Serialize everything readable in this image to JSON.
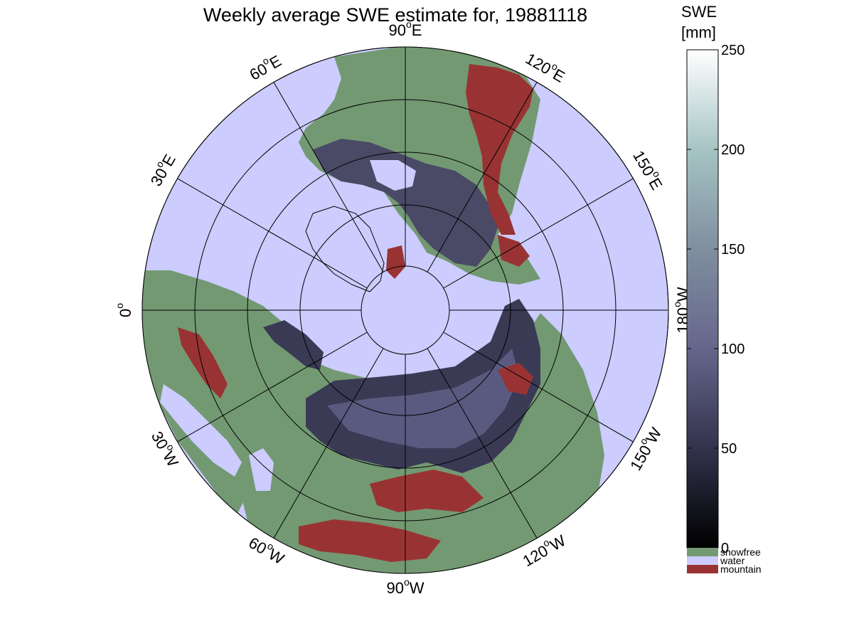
{
  "title": "Weekly average SWE estimate for, 19881118",
  "map": {
    "projection": "north polar stereographic",
    "ring_count": 5,
    "longitude_labels": [
      {
        "deg": "90",
        "dir": "W",
        "lon": -90
      },
      {
        "deg": "60",
        "dir": "W",
        "lon": -60
      },
      {
        "deg": "120",
        "dir": "W",
        "lon": -120
      },
      {
        "deg": "30",
        "dir": "W",
        "lon": -30
      },
      {
        "deg": "150",
        "dir": "W",
        "lon": -150
      },
      {
        "deg": "0",
        "dir": "",
        "lon": 0
      },
      {
        "deg": "180",
        "dir": "W",
        "lon": 180
      },
      {
        "deg": "30",
        "dir": "E",
        "lon": 30
      },
      {
        "deg": "150",
        "dir": "E",
        "lon": 150
      },
      {
        "deg": "60",
        "dir": "E",
        "lon": 60
      },
      {
        "deg": "120",
        "dir": "E",
        "lon": 120
      },
      {
        "deg": "90",
        "dir": "E",
        "lon": 90
      }
    ],
    "colors": {
      "water": "#ccccff",
      "snowfree": "#739973",
      "mountain": "#993333",
      "grid": "#000000"
    }
  },
  "colorbar": {
    "title_line1": "SWE",
    "title_line2": "[mm]",
    "min": 0,
    "max": 250,
    "ticks": [
      0,
      50,
      100,
      150,
      200,
      250
    ],
    "color_stops": [
      "#000000",
      "#33334d",
      "#66668c",
      "#7f8f9f",
      "#a6c4c4",
      "#ffffff"
    ]
  },
  "legend": [
    {
      "label": "snowfree",
      "color": "#739973"
    },
    {
      "label": "water",
      "color": "#ccccff"
    },
    {
      "label": "mountain",
      "color": "#993333"
    }
  ]
}
